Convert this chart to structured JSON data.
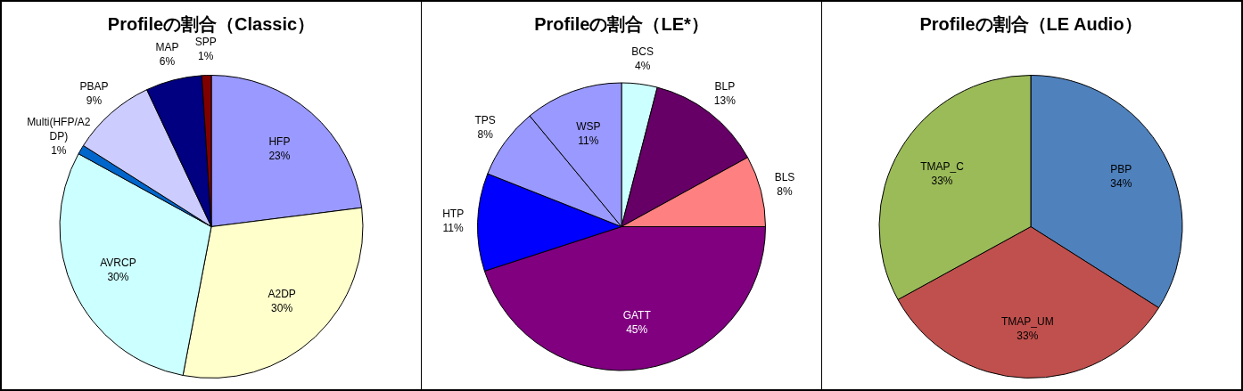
{
  "chart_data": [
    {
      "type": "pie",
      "title": "Profileの割合（Classic）",
      "categories": [
        "HFP",
        "A2DP",
        "AVRCP",
        "Multi(HFP/A2DP)",
        "PBAP",
        "MAP",
        "SPP"
      ],
      "values": [
        23,
        30,
        30,
        1,
        9,
        6,
        1
      ],
      "value_labels": [
        "23%",
        "30%",
        "30%",
        "1%",
        "9%",
        "6%",
        "1%"
      ],
      "colors": [
        "#9999ff",
        "#ffffcc",
        "#ccffff",
        "#0066cc",
        "#ccccff",
        "#000080",
        "#800000"
      ],
      "legend": false
    },
    {
      "type": "pie",
      "title": "Profileの割合（LE*）",
      "categories": [
        "BCS",
        "BLP",
        "BLS",
        "GATT",
        "HTP",
        "TPS",
        "WSP"
      ],
      "values": [
        4,
        13,
        8,
        45,
        11,
        8,
        11
      ],
      "value_labels": [
        "4%",
        "13%",
        "8%",
        "45%",
        "11%",
        "8%",
        "11%"
      ],
      "colors": [
        "#ccffff",
        "#660066",
        "#ff8080",
        "#800080",
        "#0000ff",
        "#9999ff",
        "#9999ff"
      ],
      "legend": false
    },
    {
      "type": "pie",
      "title": "Profileの割合（LE Audio）",
      "categories": [
        "PBP",
        "TMAP_UM",
        "TMAP_C"
      ],
      "values": [
        34,
        33,
        33
      ],
      "value_labels": [
        "34%",
        "33%",
        "33%"
      ],
      "colors": [
        "#4f81bd",
        "#c0504d",
        "#9bbb59"
      ],
      "legend": false
    }
  ]
}
